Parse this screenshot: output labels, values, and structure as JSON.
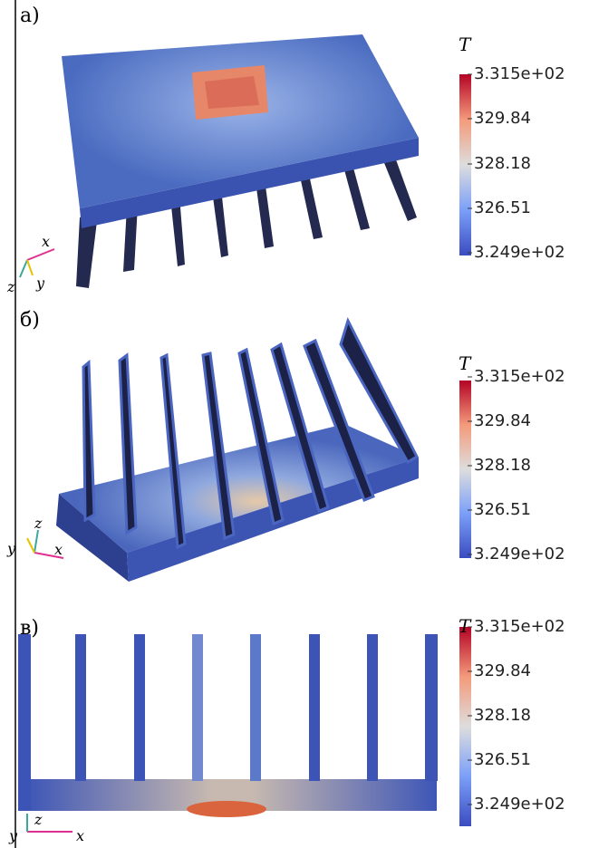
{
  "panels": [
    {
      "label": "а)",
      "colorbar": {
        "title": "T",
        "ticks": [
          "3.315e+02",
          "329.84",
          "328.18",
          "326.51",
          "3.249e+02"
        ]
      },
      "axes": [
        "x",
        "z",
        "y"
      ]
    },
    {
      "label": "б)",
      "colorbar": {
        "title": "T",
        "ticks": [
          "3.315e+02",
          "329.84",
          "328.18",
          "326.51",
          "3.249e+02"
        ]
      },
      "axes": [
        "z",
        "y",
        "x"
      ]
    },
    {
      "label": "в)",
      "colorbar": {
        "title": "T",
        "ticks": [
          "3.315e+02",
          "329.84",
          "328.18",
          "326.51",
          "3.249e+02"
        ]
      },
      "axes": [
        "z",
        "y",
        "x"
      ]
    }
  ]
}
